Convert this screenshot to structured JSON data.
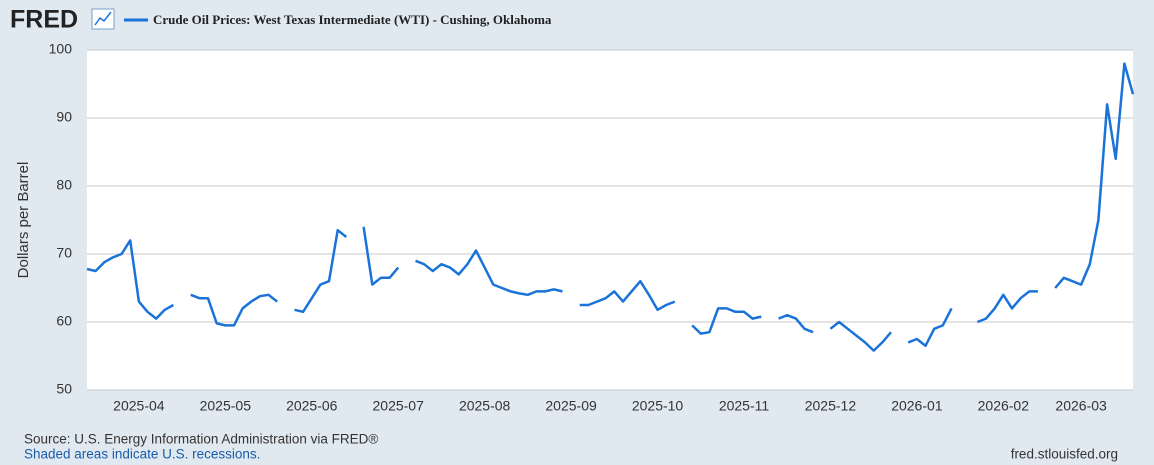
{
  "logo": "FRED",
  "footer": {
    "source": "Source: U.S. Energy Information Administration via FRED®",
    "note": "Shaded areas indicate U.S. recessions.",
    "site": "fred.stlouisfed.org"
  },
  "chart_data": {
    "type": "line",
    "y_label": "Dollars per Barrel",
    "ylim": [
      50,
      100
    ],
    "yticks": [
      50,
      60,
      70,
      80,
      90,
      100
    ],
    "grid": true,
    "categories": [
      null,
      null,
      null,
      null,
      null,
      null,
      "2025-04",
      null,
      null,
      null,
      null,
      null,
      null,
      null,
      null,
      null,
      "2025-05",
      null,
      null,
      null,
      null,
      null,
      null,
      null,
      null,
      null,
      "2025-06",
      null,
      null,
      null,
      null,
      null,
      null,
      null,
      null,
      null,
      "2025-07",
      null,
      null,
      null,
      null,
      null,
      null,
      null,
      null,
      null,
      "2025-08",
      null,
      null,
      null,
      null,
      null,
      null,
      null,
      null,
      null,
      "2025-09",
      null,
      null,
      null,
      null,
      null,
      null,
      null,
      null,
      null,
      "2025-10",
      null,
      null,
      null,
      null,
      null,
      null,
      null,
      null,
      null,
      "2025-11",
      null,
      null,
      null,
      null,
      null,
      null,
      null,
      null,
      null,
      "2025-12",
      null,
      null,
      null,
      null,
      null,
      null,
      null,
      null,
      null,
      "2026-01",
      null,
      null,
      null,
      null,
      null,
      null,
      null,
      null,
      null,
      "2026-02",
      null,
      null,
      null,
      null,
      null,
      null,
      null,
      null,
      "2026-03",
      null,
      null,
      null,
      null,
      null,
      null
    ],
    "series": [
      {
        "name": "Crude Oil Prices: West Texas Intermediate (WTI) - Cushing, Oklahoma",
        "color": "#1a73d9",
        "values": [
          67.8,
          67.5,
          68.8,
          69.5,
          70,
          72,
          63,
          61.5,
          60.5,
          61.8,
          62.5,
          null,
          64,
          63.5,
          63.5,
          59.8,
          59.5,
          59.5,
          62,
          63,
          63.8,
          64,
          63,
          null,
          61.8,
          61.5,
          63.5,
          65.5,
          66,
          73.5,
          72.5,
          null,
          74,
          65.5,
          66.5,
          66.5,
          68,
          null,
          69,
          68.5,
          67.5,
          68.5,
          68,
          67,
          68.5,
          70.5,
          68,
          65.5,
          65,
          64.5,
          64.2,
          64,
          64.5,
          64.5,
          64.8,
          64.5,
          null,
          62.5,
          62.5,
          63,
          63.5,
          64.5,
          63,
          64.5,
          66,
          64,
          61.8,
          62.5,
          63,
          null,
          59.5,
          58.3,
          58.5,
          62,
          62,
          61.5,
          61.5,
          60.5,
          60.8,
          null,
          60.5,
          61,
          60.5,
          59,
          58.5,
          null,
          59,
          60,
          59,
          58,
          57,
          55.8,
          57,
          58.5,
          null,
          57,
          57.5,
          56.5,
          59,
          59.5,
          62,
          null,
          null,
          60,
          60.5,
          62,
          64,
          62,
          63.5,
          64.5,
          64.5,
          null,
          65,
          66.5,
          66,
          65.5,
          68.5,
          75,
          92,
          84,
          98,
          93.5
        ]
      }
    ]
  }
}
